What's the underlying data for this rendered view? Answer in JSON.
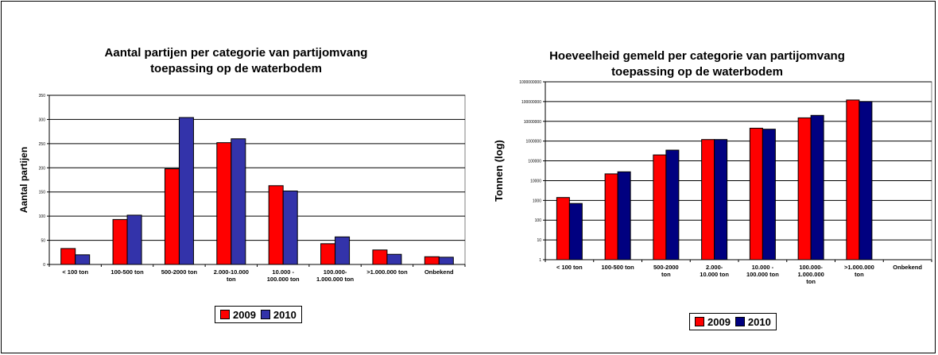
{
  "chart_data": [
    {
      "type": "bar",
      "title": "Aantal partijen per categorie van partijomvang",
      "subtitle": "toepassing op de waterbodem",
      "xlabel": "",
      "ylabel": "Aantal partijen",
      "ylim": [
        0,
        350
      ],
      "yticks": [
        0,
        50,
        100,
        150,
        200,
        250,
        300,
        350
      ],
      "grid": true,
      "categories": [
        "< 100 ton",
        "100-500 ton",
        "500-2000 ton",
        "2.000-10.000 ton",
        "10.000 - 100.000 ton",
        "100.000- 1.000.000 ton",
        ">1.000.000 ton",
        "Onbekend"
      ],
      "category_lines": [
        [
          "< 100 ton"
        ],
        [
          "100-500 ton"
        ],
        [
          "500-2000 ton"
        ],
        [
          "2.000-10.000",
          "ton"
        ],
        [
          "10.000 -",
          "100.000 ton"
        ],
        [
          "100.000-",
          "1.000.000 ton"
        ],
        [
          ">1.000.000 ton"
        ],
        [
          "Onbekend"
        ]
      ],
      "series": [
        {
          "name": "2009",
          "color": "#ff0000",
          "values": [
            33,
            93,
            198,
            252,
            163,
            43,
            30,
            16
          ]
        },
        {
          "name": "2010",
          "color": "#3333aa",
          "values": [
            20,
            102,
            304,
            260,
            152,
            57,
            21,
            15
          ]
        }
      ],
      "legend_position": "bottom-center"
    },
    {
      "type": "bar",
      "title": "Hoeveelheid gemeld per categorie van partijomvang",
      "subtitle": "toepassing op de waterbodem",
      "xlabel": "",
      "ylabel": "Tonnen (log)",
      "yscale": "log",
      "ylim": [
        1,
        1000000000
      ],
      "ytick_labels": [
        "1",
        "10",
        "100",
        "1000",
        "10000",
        "100000",
        "1000000",
        "10000000",
        "100000000",
        "1000000000"
      ],
      "grid": true,
      "categories": [
        "< 100 ton",
        "100-500 ton",
        "500-2000 ton",
        "2.000- 10.000 ton",
        "10.000 - 100.000 ton",
        "100.000- 1.000.000 ton",
        ">1.000.000 ton",
        "Onbekend"
      ],
      "category_lines": [
        [
          "< 100 ton"
        ],
        [
          "100-500 ton"
        ],
        [
          "500-2000",
          "ton"
        ],
        [
          "2.000-",
          "10.000 ton"
        ],
        [
          "10.000 -",
          "100.000 ton"
        ],
        [
          "100.000-",
          "1.000.000",
          "ton"
        ],
        [
          ">1.000.000",
          "ton"
        ],
        [
          "Onbekend"
        ]
      ],
      "series": [
        {
          "name": "2009",
          "color": "#ff0000",
          "values": [
            1400,
            22000,
            200000,
            1200000,
            4500000,
            15000000,
            120000000,
            null
          ]
        },
        {
          "name": "2010",
          "color": "#000080",
          "values": [
            700,
            28000,
            350000,
            1200000,
            4000000,
            20000000,
            100000000,
            null
          ]
        }
      ],
      "legend_position": "bottom-center"
    }
  ]
}
